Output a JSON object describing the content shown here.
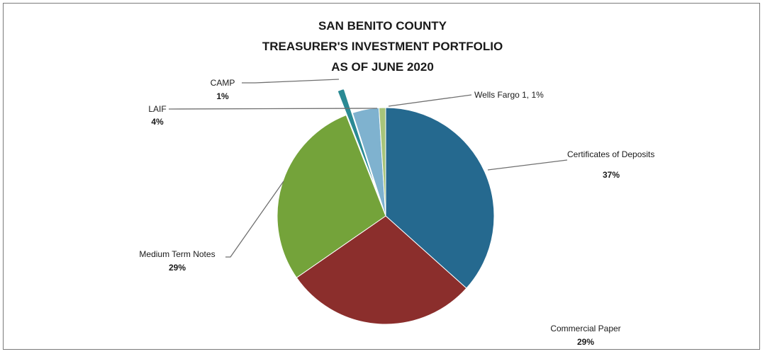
{
  "chart_data": {
    "type": "pie",
    "title_lines": [
      "SAN BENITO COUNTY",
      "TREASURER'S INVESTMENT PORTFOLIO",
      "AS OF JUNE 2020"
    ],
    "slices": [
      {
        "label": "Certificates of Deposits",
        "value": 37,
        "percent_text": "37%",
        "color": "#25698f"
      },
      {
        "label": "Commercial Paper",
        "value": 29,
        "percent_text": "29%",
        "color": "#8b2e2c"
      },
      {
        "label": "Medium Term Notes",
        "value": 29,
        "percent_text": "29%",
        "color": "#74a33a"
      },
      {
        "label": "CAMP",
        "value": 1,
        "percent_text": "1%",
        "color": "#2a8a94"
      },
      {
        "label": "LAIF",
        "value": 4,
        "percent_text": "4%",
        "color": "#7fb2cf"
      },
      {
        "label": "Wells Fargo 1, 1%",
        "value": 1,
        "percent_text": "",
        "color": "#a7c47a"
      }
    ]
  }
}
